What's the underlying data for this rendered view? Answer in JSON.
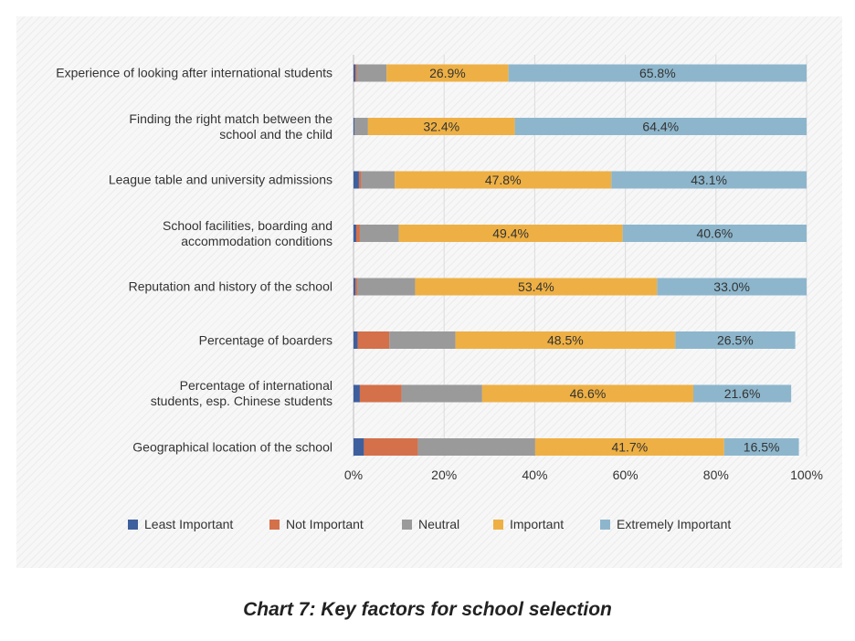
{
  "caption": "Chart 7: Key factors for school selection",
  "chart_data": {
    "type": "bar",
    "orientation": "horizontal",
    "stacked": true,
    "percent_stacked": true,
    "categories": [
      "Experience of looking after international students",
      "Finding the right match between the school and the child",
      "League table and university admissions",
      "School facilities, boarding and accommodation conditions",
      "Reputation and history of the school",
      "Percentage of boarders",
      "Percentage of international students, esp. Chinese students",
      "Geographical location of the school"
    ],
    "category_lines": [
      [
        "Experience of looking after international students"
      ],
      [
        "Finding the right match between the",
        "school and the child"
      ],
      [
        "League table and university admissions"
      ],
      [
        "School facilities, boarding and",
        "accommodation conditions"
      ],
      [
        "Reputation and history of the school"
      ],
      [
        "Percentage of boarders"
      ],
      [
        "Percentage of international",
        "students, esp. Chinese students"
      ],
      [
        "Geographical location of the school"
      ]
    ],
    "series": [
      {
        "name": "Least Important",
        "color": "#3e5f9e",
        "values": [
          0.4,
          0.2,
          1.2,
          0.6,
          0.4,
          0.9,
          1.4,
          2.3
        ]
      },
      {
        "name": "Not Important",
        "color": "#d4704a",
        "values": [
          0.3,
          0.0,
          0.5,
          0.8,
          0.4,
          7.0,
          9.2,
          11.9
        ]
      },
      {
        "name": "Neutral",
        "color": "#9a9a9a",
        "values": [
          6.6,
          3.0,
          7.4,
          8.6,
          12.8,
          14.6,
          17.8,
          25.9
        ]
      },
      {
        "name": "Important",
        "color": "#eeb044",
        "values": [
          26.9,
          32.4,
          47.8,
          49.4,
          53.4,
          48.5,
          46.6,
          41.7
        ]
      },
      {
        "name": "Extremely Important",
        "color": "#8db6cc",
        "values": [
          65.8,
          64.4,
          43.1,
          40.6,
          33.0,
          26.5,
          21.6,
          16.5
        ]
      }
    ],
    "data_labels": [
      [
        null,
        null,
        null,
        "26.9%",
        "65.8%"
      ],
      [
        null,
        null,
        null,
        "32.4%",
        "64.4%"
      ],
      [
        null,
        null,
        null,
        "47.8%",
        "43.1%"
      ],
      [
        null,
        null,
        null,
        "49.4%",
        "40.6%"
      ],
      [
        null,
        null,
        null,
        "53.4%",
        "33.0%"
      ],
      [
        null,
        null,
        null,
        "48.5%",
        "26.5%"
      ],
      [
        null,
        null,
        null,
        "46.6%",
        "21.6%"
      ],
      [
        null,
        null,
        null,
        "41.7%",
        "16.5%"
      ]
    ],
    "xlim": [
      0,
      100
    ],
    "xticks": [
      "0%",
      "20%",
      "40%",
      "60%",
      "80%",
      "100%"
    ],
    "xtick_values": [
      0,
      20,
      40,
      60,
      80,
      100
    ],
    "grid": true,
    "legend_position": "bottom"
  }
}
